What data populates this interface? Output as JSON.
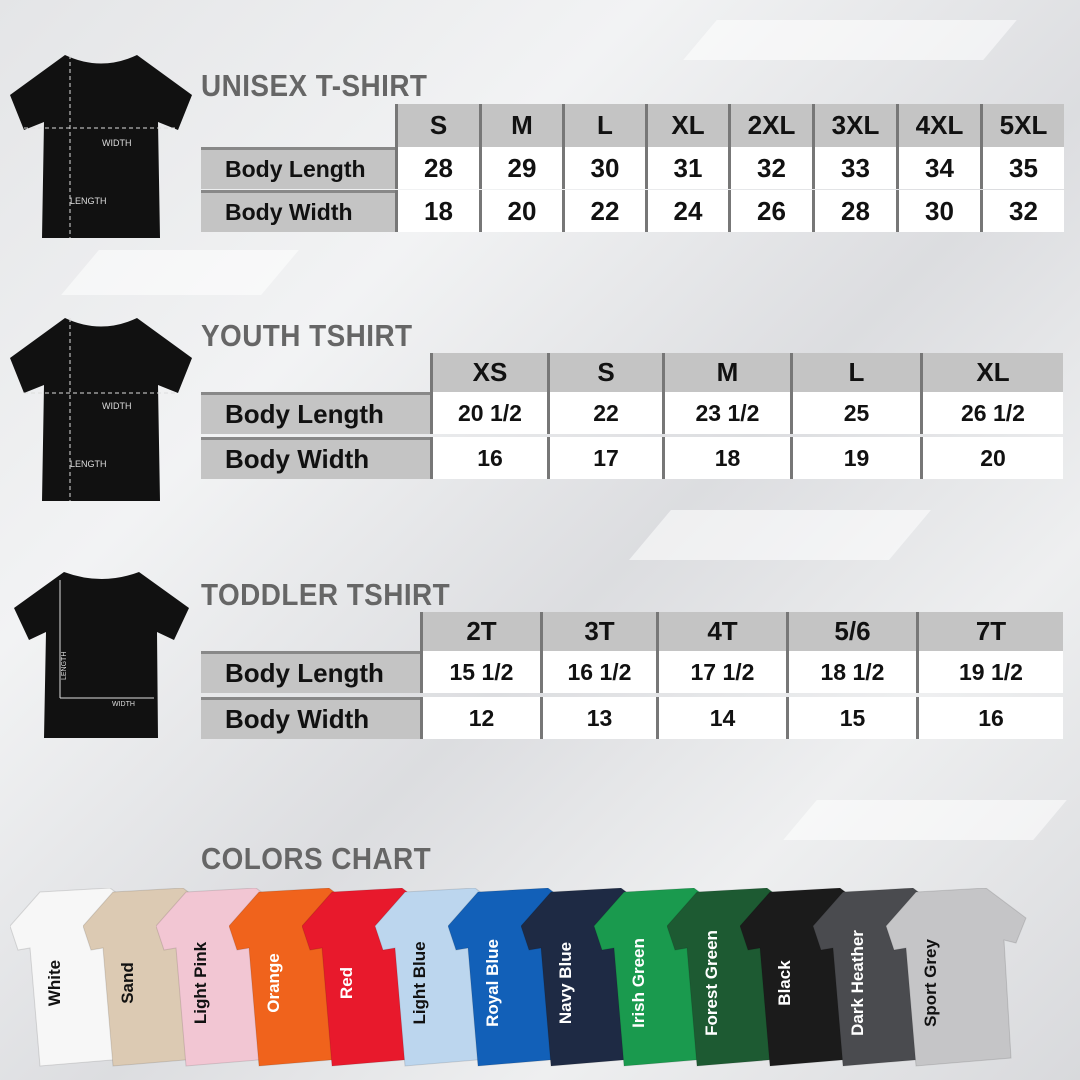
{
  "unisex": {
    "title": "UNISEX T-SHIRT",
    "sizes": [
      "S",
      "M",
      "L",
      "XL",
      "2XL",
      "3XL",
      "4XL",
      "5XL"
    ],
    "rows": [
      {
        "label": "Body Length",
        "values": [
          "28",
          "29",
          "30",
          "31",
          "32",
          "33",
          "34",
          "35"
        ]
      },
      {
        "label": "Body Width",
        "values": [
          "18",
          "20",
          "22",
          "24",
          "26",
          "28",
          "30",
          "32"
        ]
      }
    ],
    "diagram": {
      "width": "WIDTH",
      "length": "LENGTH"
    }
  },
  "youth": {
    "title": "YOUTH TSHIRT",
    "sizes": [
      "XS",
      "S",
      "M",
      "L",
      "XL"
    ],
    "rows": [
      {
        "label": "Body Length",
        "values": [
          "20 1/2",
          "22",
          "23 1/2",
          "25",
          "26 1/2"
        ]
      },
      {
        "label": "Body Width",
        "values": [
          "16",
          "17",
          "18",
          "19",
          "20"
        ]
      }
    ],
    "diagram": {
      "width": "WIDTH",
      "length": "LENGTH"
    }
  },
  "toddler": {
    "title": "TODDLER TSHIRT",
    "sizes": [
      "2T",
      "3T",
      "4T",
      "5/6",
      "7T"
    ],
    "rows": [
      {
        "label": "Body Length",
        "values": [
          "15 1/2",
          "16 1/2",
          "17 1/2",
          "18 1/2",
          "19 1/2"
        ]
      },
      {
        "label": "Body Width",
        "values": [
          "12",
          "13",
          "14",
          "15",
          "16"
        ]
      }
    ],
    "diagram": {
      "width": "WIDTH",
      "length": "LENGTH"
    }
  },
  "colors": {
    "title": "COLORS CHART",
    "items": [
      {
        "name": "White",
        "color": "#f7f7f7",
        "text": "#111"
      },
      {
        "name": "Sand",
        "color": "#dccab3",
        "text": "#111"
      },
      {
        "name": "Light Pink",
        "color": "#f2c6d3",
        "text": "#111"
      },
      {
        "name": "Orange",
        "color": "#f0631c",
        "text": "#fff"
      },
      {
        "name": "Red",
        "color": "#e8192c",
        "text": "#fff"
      },
      {
        "name": "Light Blue",
        "color": "#bcd6ee",
        "text": "#111"
      },
      {
        "name": "Royal Blue",
        "color": "#1260b8",
        "text": "#fff"
      },
      {
        "name": "Navy Blue",
        "color": "#1e2a44",
        "text": "#fff"
      },
      {
        "name": "Irish Green",
        "color": "#1a9a4e",
        "text": "#fff"
      },
      {
        "name": "Forest Green",
        "color": "#1d5a32",
        "text": "#fff"
      },
      {
        "name": "Black",
        "color": "#1b1b1b",
        "text": "#fff"
      },
      {
        "name": "Dark Heather",
        "color": "#4a4b4f",
        "text": "#fff"
      },
      {
        "name": "Sport Grey",
        "color": "#c5c5c7",
        "text": "#111"
      }
    ]
  }
}
